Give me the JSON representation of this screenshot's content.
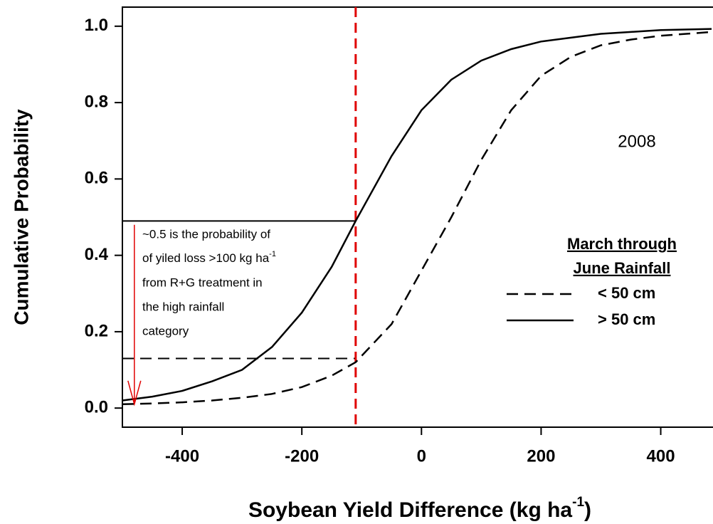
{
  "chart_data": {
    "type": "line",
    "xlabel": [
      "Soybean Yield Difference (kg ha",
      "-1",
      ")"
    ],
    "ylabel": "Cumulative Probability",
    "year_label": "2008",
    "x": [
      -500,
      -450,
      -400,
      -350,
      -300,
      -250,
      -200,
      -150,
      -110,
      -50,
      0,
      50,
      100,
      150,
      200,
      250,
      300,
      350,
      400,
      485
    ],
    "series": [
      {
        "name": "< 50 cm",
        "color": "#000000",
        "dash": "dashed",
        "values": [
          0.01,
          0.012,
          0.015,
          0.02,
          0.027,
          0.037,
          0.055,
          0.085,
          0.12,
          0.22,
          0.36,
          0.5,
          0.65,
          0.78,
          0.87,
          0.92,
          0.95,
          0.965,
          0.975,
          0.985
        ]
      },
      {
        "name": "> 50 cm",
        "color": "#000000",
        "dash": "solid",
        "values": [
          0.02,
          0.03,
          0.045,
          0.07,
          0.1,
          0.16,
          0.25,
          0.37,
          0.49,
          0.66,
          0.78,
          0.86,
          0.91,
          0.94,
          0.96,
          0.97,
          0.98,
          0.985,
          0.99,
          0.993
        ]
      }
    ],
    "legend_title": [
      "March through",
      "June Rainfall"
    ],
    "legend_position": "right",
    "xlim": [
      -500,
      485
    ],
    "ylim": [
      -0.05,
      1.05
    ],
    "xticks": [
      -400,
      -200,
      0,
      200,
      400
    ],
    "yticks": [
      {
        "value": 0,
        "label": "0.0"
      },
      {
        "value": 0.2,
        "label": "0.2"
      },
      {
        "value": 0.4,
        "label": "0.4"
      },
      {
        "value": 0.6,
        "label": "0.6"
      },
      {
        "value": 0.8,
        "label": "0.8"
      },
      {
        "value": 1,
        "label": "1.0"
      }
    ],
    "vline": {
      "x": -110,
      "color": "#e00000"
    },
    "hlines": [
      {
        "y": 0.49,
        "x_end": -110,
        "dash": "solid"
      },
      {
        "y": 0.13,
        "x_end": -110,
        "dash": "dashed"
      }
    ],
    "arrow": {
      "x": -480,
      "y_start": 0.48,
      "y_end": 0.01,
      "color": "#e00000"
    },
    "annotation": [
      "~0.5 is the probability of",
      [
        "of yiled loss >100 kg ha",
        "-1"
      ],
      " from R+G treatment in",
      "the high rainfall",
      "category"
    ]
  }
}
